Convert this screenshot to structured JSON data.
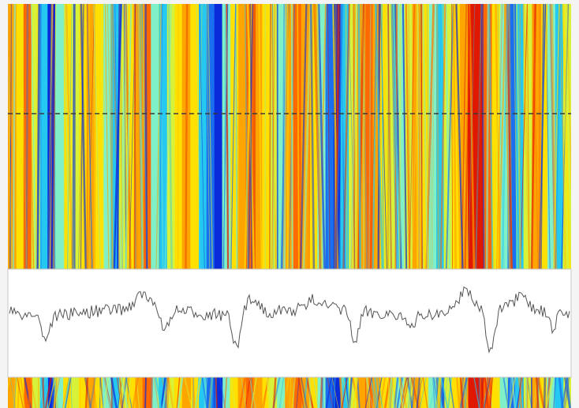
{
  "viewer": {
    "image_description_visible": "",
    "colormap": [
      "#0a2bd8",
      "#1a6ff0",
      "#25c8f0",
      "#7ff0c8",
      "#d8f23a",
      "#ffe000",
      "#ffa500",
      "#ff6a00",
      "#e01800"
    ],
    "frame_color": "#d9d9d9",
    "dashed_line_color": "#3a3a3a",
    "profile_line_color": "#555555",
    "profile_panel_color": "#ffffff",
    "profile_panel_border": "#c8c8c8"
  }
}
